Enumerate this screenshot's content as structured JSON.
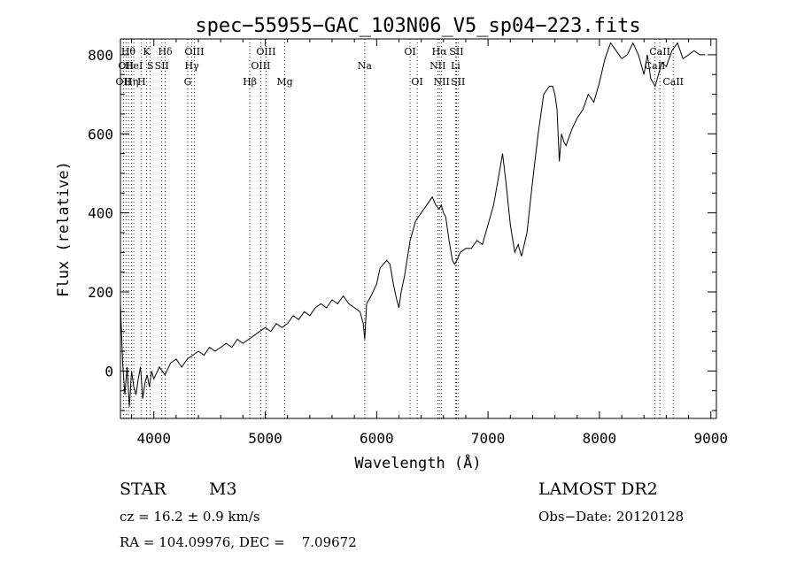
{
  "chart_data": {
    "type": "line",
    "title": "spec−55955−GAC_103N06_V5_sp04−223.fits",
    "xlabel": "Wavelength (Å)",
    "ylabel": "Flux (relative)",
    "xlim": [
      3700,
      9050
    ],
    "ylim": [
      -120,
      840
    ],
    "xticks": [
      4000,
      5000,
      6000,
      7000,
      8000,
      9000
    ],
    "yticks": [
      0,
      200,
      400,
      600,
      800
    ],
    "grid": false,
    "lines": [
      {
        "w": 3727,
        "labels": [
          "OII"
        ],
        "row": [
          2
        ]
      },
      {
        "w": 3750,
        "labels": [
          "OII"
        ],
        "row": [
          1
        ]
      },
      {
        "w": 3771,
        "labels": [
          "Hθ"
        ],
        "row": [
          0
        ]
      },
      {
        "w": 3798,
        "labels": [
          "Hη"
        ],
        "row": [
          2
        ]
      },
      {
        "w": 3820,
        "labels": [
          "HeI"
        ],
        "row": [
          1
        ]
      },
      {
        "w": 3889,
        "labels": [
          "H"
        ],
        "row": [
          2
        ]
      },
      {
        "w": 3934,
        "labels": [
          "K"
        ],
        "row": [
          0
        ]
      },
      {
        "w": 3968,
        "labels": [
          "S"
        ],
        "row": [
          1
        ]
      },
      {
        "w": 4072,
        "labels": [
          "SII"
        ],
        "row": [
          1
        ]
      },
      {
        "w": 4102,
        "labels": [
          "Hδ"
        ],
        "row": [
          0
        ]
      },
      {
        "w": 4304,
        "labels": [
          "G"
        ],
        "row": [
          2
        ]
      },
      {
        "w": 4341,
        "labels": [
          "Hγ"
        ],
        "row": [
          1
        ]
      },
      {
        "w": 4363,
        "labels": [
          "OIII"
        ],
        "row": [
          0
        ]
      },
      {
        "w": 4861,
        "labels": [
          "Hβ"
        ],
        "row": [
          2
        ]
      },
      {
        "w": 4959,
        "labels": [
          "OIII"
        ],
        "row": [
          1
        ]
      },
      {
        "w": 5007,
        "labels": [
          "OIII"
        ],
        "row": [
          0
        ]
      },
      {
        "w": 5175,
        "labels": [
          "Mg"
        ],
        "row": [
          2
        ]
      },
      {
        "w": 5893,
        "labels": [
          "Na"
        ],
        "row": [
          1
        ]
      },
      {
        "w": 6300,
        "labels": [
          "OI"
        ],
        "row": [
          0
        ]
      },
      {
        "w": 6364,
        "labels": [
          "OI"
        ],
        "row": [
          2
        ]
      },
      {
        "w": 6548,
        "labels": [
          "NII"
        ],
        "row": [
          1
        ]
      },
      {
        "w": 6563,
        "labels": [
          "Hα"
        ],
        "row": [
          0
        ]
      },
      {
        "w": 6583,
        "labels": [
          "NII"
        ],
        "row": [
          2
        ]
      },
      {
        "w": 6708,
        "labels": [
          "Li"
        ],
        "row": [
          1
        ]
      },
      {
        "w": 6717,
        "labels": [
          "SII"
        ],
        "row": [
          0
        ]
      },
      {
        "w": 6731,
        "labels": [
          "SII"
        ],
        "row": [
          2
        ]
      },
      {
        "w": 8498,
        "labels": [
          "CaII"
        ],
        "row": [
          1
        ]
      },
      {
        "w": 8542,
        "labels": [
          "CaII"
        ],
        "row": [
          0
        ]
      },
      {
        "w": 8662,
        "labels": [
          "CaII"
        ],
        "row": [
          2
        ]
      }
    ],
    "series": [
      {
        "x": [
          3700,
          3720,
          3740,
          3760,
          3780,
          3800,
          3820,
          3840,
          3860,
          3880,
          3900,
          3920,
          3940,
          3960,
          3980,
          4000,
          4050,
          4100,
          4150,
          4200,
          4250,
          4300,
          4350,
          4400,
          4450,
          4500,
          4550,
          4600,
          4650,
          4700,
          4750,
          4800,
          4850,
          4900,
          4950,
          5000,
          5050,
          5100,
          5150,
          5200,
          5250,
          5300,
          5350,
          5400,
          5450,
          5500,
          5550,
          5600,
          5650,
          5700,
          5750,
          5800,
          5850,
          5880,
          5893,
          5910,
          5950,
          6000,
          6030,
          6060,
          6090,
          6120,
          6150,
          6180,
          6200,
          6220,
          6250,
          6300,
          6350,
          6400,
          6450,
          6500,
          6530,
          6560,
          6580,
          6600,
          6620,
          6650,
          6680,
          6700,
          6720,
          6750,
          6800,
          6850,
          6900,
          6950,
          7000,
          7050,
          7100,
          7130,
          7160,
          7200,
          7240,
          7270,
          7300,
          7350,
          7400,
          7450,
          7500,
          7550,
          7580,
          7600,
          7620,
          7640,
          7660,
          7680,
          7700,
          7750,
          7800,
          7850,
          7900,
          7950,
          8000,
          8050,
          8100,
          8150,
          8200,
          8250,
          8300,
          8350,
          8400,
          8430,
          8460,
          8500,
          8540,
          8560,
          8600,
          8650,
          8700,
          8750,
          8800,
          8850,
          8900,
          8950
        ],
        "y": [
          170,
          20,
          -60,
          10,
          -90,
          0,
          -40,
          -60,
          -20,
          10,
          -70,
          -30,
          -10,
          -40,
          0,
          -20,
          10,
          -10,
          20,
          30,
          10,
          30,
          40,
          50,
          40,
          60,
          50,
          60,
          70,
          60,
          80,
          70,
          80,
          90,
          100,
          110,
          100,
          120,
          110,
          120,
          140,
          130,
          150,
          140,
          160,
          170,
          160,
          180,
          170,
          190,
          170,
          160,
          150,
          120,
          80,
          170,
          190,
          220,
          260,
          270,
          280,
          270,
          220,
          180,
          160,
          200,
          240,
          330,
          380,
          400,
          420,
          440,
          420,
          410,
          420,
          400,
          390,
          330,
          280,
          270,
          280,
          300,
          310,
          310,
          330,
          320,
          370,
          420,
          500,
          550,
          480,
          370,
          300,
          320,
          290,
          350,
          480,
          600,
          700,
          720,
          720,
          700,
          660,
          530,
          600,
          580,
          570,
          610,
          640,
          660,
          700,
          680,
          730,
          790,
          830,
          810,
          790,
          800,
          830,
          800,
          750,
          800,
          740,
          720,
          760,
          780,
          770,
          810,
          830,
          790,
          800,
          810,
          800,
          800
        ]
      }
    ]
  },
  "info": {
    "object_class": "STAR",
    "subclass": "M3",
    "survey": "LAMOST DR2",
    "cz": "cz = 16.2 ± 0.9 km/s",
    "obs_date": "Obs−Date: 20120128",
    "coords": "RA = 104.09976, DEC =    7.09672"
  }
}
